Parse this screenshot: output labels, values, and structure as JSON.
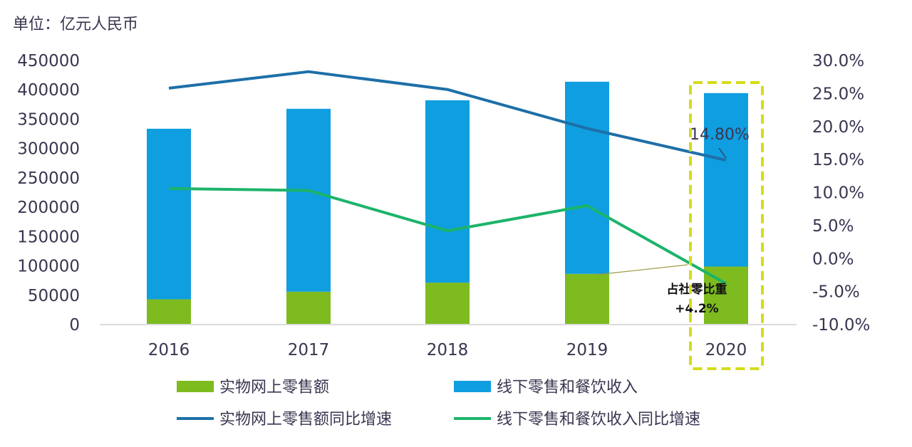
{
  "chart_data": {
    "type": "bar",
    "unit_label": "单位：亿元人民币",
    "categories": [
      "2016",
      "2017",
      "2018",
      "2019",
      "2020"
    ],
    "stacked": true,
    "series": [
      {
        "name": "实物网上零售额",
        "type": "bar",
        "axis": "left",
        "color": "#7dbb1f",
        "values": [
          41900,
          54800,
          70200,
          85200,
          97600
        ]
      },
      {
        "name": "线下零售和餐饮收入",
        "type": "bar",
        "axis": "left",
        "color": "#0f9ee0",
        "values": [
          290600,
          311700,
          310800,
          327400,
          295600
        ]
      },
      {
        "name": "实物网上零售额同比增速",
        "type": "line",
        "axis": "right",
        "color": "#1d6fa8",
        "values": [
          25.7,
          28.2,
          25.5,
          19.6,
          14.8
        ]
      },
      {
        "name": "线下零售和餐饮收入同比增速",
        "type": "line",
        "axis": "right",
        "color": "#1cb46a",
        "values": [
          10.5,
          10.2,
          4.1,
          7.9,
          -3.9
        ]
      }
    ],
    "left_axis": {
      "ylim": [
        0,
        450000
      ],
      "ticks": [
        "0",
        "50000",
        "100000",
        "150000",
        "200000",
        "250000",
        "300000",
        "350000",
        "400000",
        "450000"
      ]
    },
    "right_axis": {
      "ylim": [
        -10,
        30
      ],
      "ticks": [
        "-10.0%",
        "-5.0%",
        "0.0%",
        "5.0%",
        "10.0%",
        "15.0%",
        "20.0%",
        "25.0%",
        "30.0%"
      ]
    },
    "annotations": {
      "growth_label": "14.80%",
      "share_label_line1": "占社零比重",
      "share_label_line2": "+4.2%"
    },
    "highlight_category": "2020",
    "highlight_color": "#d4dc1a",
    "grid": false,
    "legend_position": "bottom"
  }
}
